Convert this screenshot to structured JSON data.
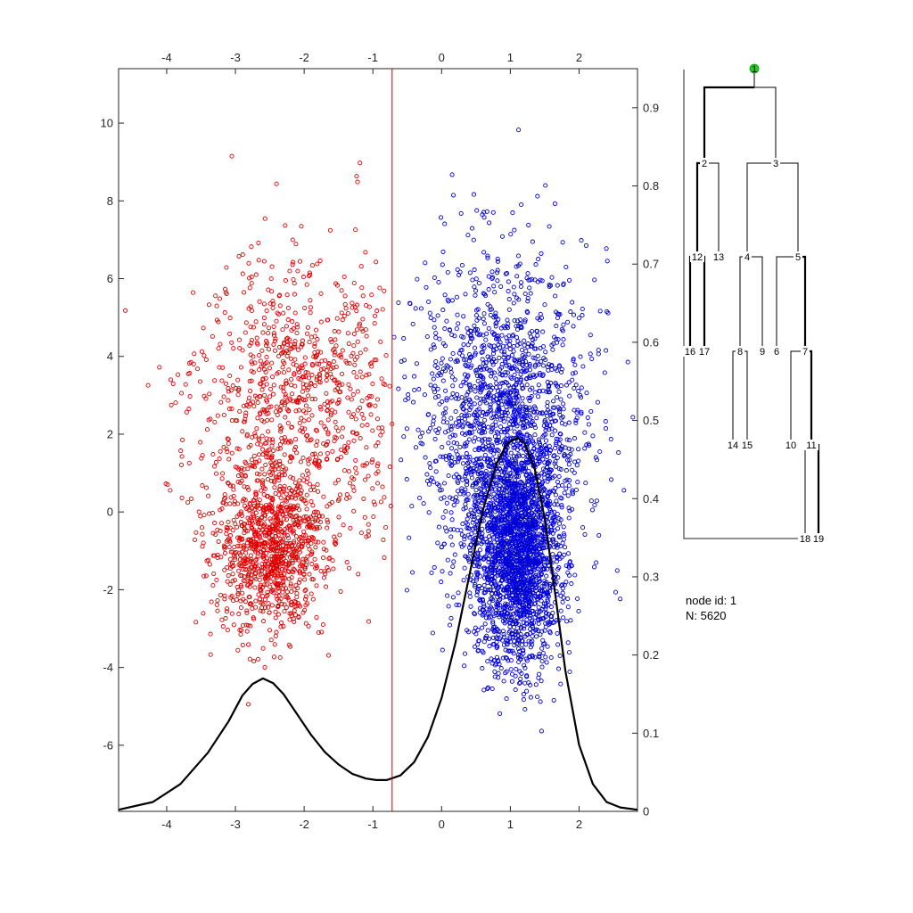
{
  "colors": {
    "left_cluster": "#e00000",
    "right_cluster": "#0000d8",
    "density": "#000000",
    "split_line": "#e00000",
    "root_node": "#22cc22",
    "axis": "#262626"
  },
  "chart_data": [
    {
      "type": "scatter",
      "title": "",
      "xlabel": "",
      "ylabel": "",
      "xlim": [
        -4.7,
        2.85
      ],
      "ylim": [
        -7.7,
        11.4
      ],
      "x_ticks": [
        -4,
        -3,
        -2,
        -1,
        0,
        1,
        2
      ],
      "y_ticks": [
        -6,
        -4,
        -2,
        0,
        2,
        4,
        6,
        8,
        10
      ],
      "split_x": -0.72,
      "total_points": 5620,
      "series": [
        {
          "color": "#e00000",
          "approx_count": 1900,
          "components": [
            {
              "mean_x": -2.5,
              "mean_y": -1.0,
              "sd_x": 0.38,
              "sd_y": 1.05,
              "weight": 0.5
            },
            {
              "mean_x": -2.1,
              "mean_y": 2.8,
              "sd_x": 0.75,
              "sd_y": 1.9,
              "weight": 0.5
            }
          ],
          "x_range": [
            -4.7,
            -0.72
          ]
        },
        {
          "color": "#0000d8",
          "approx_count": 3720,
          "components": [
            {
              "mean_x": 1.1,
              "mean_y": -1.0,
              "sd_x": 0.32,
              "sd_y": 1.5,
              "weight": 0.55
            },
            {
              "mean_x": 0.9,
              "mean_y": 2.3,
              "sd_x": 0.6,
              "sd_y": 2.1,
              "weight": 0.45
            }
          ],
          "x_range": [
            -0.72,
            2.85
          ]
        }
      ]
    },
    {
      "type": "line",
      "title": "",
      "ylim": [
        0,
        0.95
      ],
      "y_ticks": [
        0,
        0.1,
        0.2,
        0.3,
        0.4,
        0.5,
        0.6,
        0.7,
        0.8,
        0.9
      ],
      "series": [
        {
          "color": "#000000",
          "x": [
            -4.7,
            -4.2,
            -3.8,
            -3.4,
            -3.1,
            -2.9,
            -2.75,
            -2.6,
            -2.45,
            -2.3,
            -2.1,
            -1.9,
            -1.7,
            -1.5,
            -1.3,
            -1.1,
            -0.95,
            -0.8,
            -0.6,
            -0.4,
            -0.2,
            0.0,
            0.2,
            0.4,
            0.6,
            0.8,
            0.95,
            1.1,
            1.2,
            1.35,
            1.5,
            1.65,
            1.8,
            2.0,
            2.2,
            2.4,
            2.6,
            2.85
          ],
          "y": [
            0.002,
            0.012,
            0.035,
            0.075,
            0.115,
            0.148,
            0.163,
            0.17,
            0.164,
            0.15,
            0.124,
            0.098,
            0.076,
            0.06,
            0.048,
            0.042,
            0.04,
            0.04,
            0.046,
            0.063,
            0.095,
            0.145,
            0.215,
            0.3,
            0.385,
            0.445,
            0.47,
            0.478,
            0.472,
            0.44,
            0.375,
            0.28,
            0.18,
            0.085,
            0.035,
            0.012,
            0.005,
            0.002
          ]
        }
      ]
    }
  ],
  "tree": {
    "nodes": [
      {
        "id": "1"
      },
      {
        "id": "2"
      },
      {
        "id": "3"
      },
      {
        "id": "4"
      },
      {
        "id": "5"
      },
      {
        "id": "6"
      },
      {
        "id": "7"
      },
      {
        "id": "8"
      },
      {
        "id": "9"
      },
      {
        "id": "10"
      },
      {
        "id": "11"
      },
      {
        "id": "12"
      },
      {
        "id": "13"
      },
      {
        "id": "14"
      },
      {
        "id": "15"
      },
      {
        "id": "16"
      },
      {
        "id": "17"
      },
      {
        "id": "18"
      },
      {
        "id": "19"
      }
    ]
  },
  "node_info": {
    "id_label": "node id: 1",
    "n_label": "N: 5620"
  }
}
